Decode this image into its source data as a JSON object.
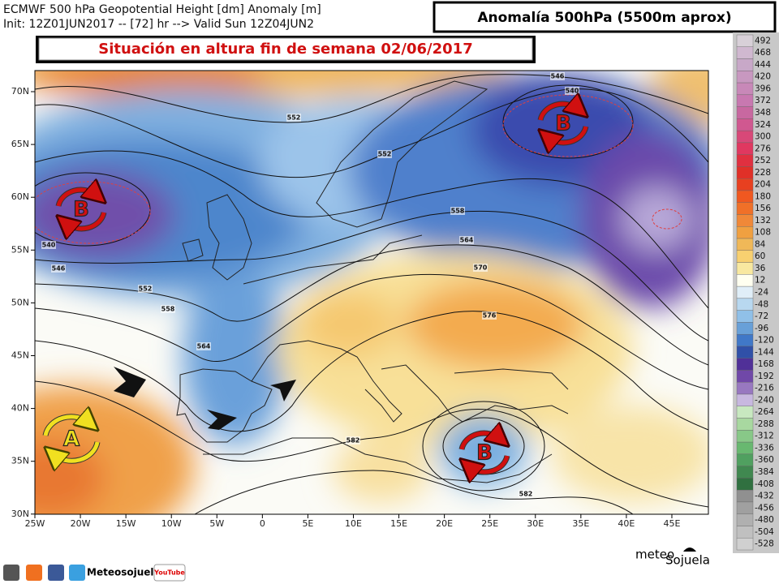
{
  "header": {
    "line1": "ECMWF 500 hPa Geopotential Height [dm] Anomaly [m]",
    "line2": "Init: 12Z01JUN2017 -- [72] hr --> Valid Sun 12Z04JUN2",
    "title": "Anomalía 500hPa (5500m aprox)",
    "subtitle": "Situación en altura fin de semana 02/06/2017"
  },
  "map": {
    "lat_labels": [
      "70N",
      "65N",
      "60N",
      "55N",
      "50N",
      "45N",
      "40N",
      "35N",
      "30N"
    ],
    "lon_labels": [
      "25W",
      "20W",
      "15W",
      "10W",
      "5W",
      "0",
      "5E",
      "10E",
      "15E",
      "20E",
      "25E",
      "30E",
      "35E",
      "40E",
      "45E"
    ],
    "contour_labels": [
      "552",
      "546",
      "540",
      "552",
      "558",
      "564",
      "570",
      "576",
      "540",
      "546",
      "552",
      "558",
      "564",
      "582",
      "582"
    ],
    "centers": [
      "B",
      "B",
      "B",
      "A"
    ]
  },
  "colorbar": {
    "labels": [
      492,
      468,
      444,
      420,
      396,
      372,
      348,
      324,
      300,
      276,
      252,
      228,
      204,
      180,
      156,
      132,
      108,
      84,
      60,
      36,
      12,
      -24,
      -48,
      -72,
      -96,
      -120,
      -144,
      -168,
      -192,
      -216,
      -240,
      -264,
      -288,
      -312,
      -336,
      -360,
      -384,
      -408,
      -432,
      -456,
      -480,
      -504,
      -528
    ],
    "colors": [
      "#d8d0d8",
      "#d0b8d0",
      "#c8a8c8",
      "#c898c0",
      "#c888b8",
      "#c878b0",
      "#c868a0",
      "#d05890",
      "#d84878",
      "#e03860",
      "#e03040",
      "#e03028",
      "#e84020",
      "#f05820",
      "#f07028",
      "#f08838",
      "#f0a040",
      "#f0b858",
      "#f8d070",
      "#f8e8a0",
      "#fffff0",
      "#e0eef8",
      "#b8d8f0",
      "#90c0e8",
      "#68a0d8",
      "#4078c8",
      "#3050a8",
      "#503098",
      "#7048a8",
      "#9878c0",
      "#c8b8e0",
      "#c8e8c0",
      "#a8d8a0",
      "#88c888",
      "#68b870",
      "#50a060",
      "#408850",
      "#307040",
      "#909090",
      "#a0a0a0",
      "#b0b0b0",
      "#c0c0c0",
      "#d0d0d0"
    ]
  },
  "footer": {
    "social": "Meteosojuela",
    "youtube": "YouTube",
    "logo_top": "meteo",
    "logo_bottom": "Sojuela"
  }
}
